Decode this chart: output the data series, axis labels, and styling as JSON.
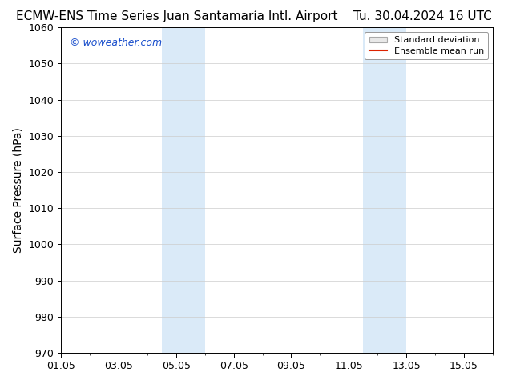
{
  "title_left": "ECMW-ENS Time Series Juan Santamaría Intl. Airport",
  "title_right": "Tu. 30.04.2024 16 UTC",
  "ylabel": "Surface Pressure (hPa)",
  "ylim": [
    970,
    1060
  ],
  "yticks": [
    970,
    980,
    990,
    1000,
    1010,
    1020,
    1030,
    1040,
    1050,
    1060
  ],
  "xtick_labels": [
    "01.05",
    "03.05",
    "05.05",
    "07.05",
    "09.05",
    "11.05",
    "13.05",
    "15.05"
  ],
  "xtick_positions": [
    0,
    2,
    4,
    6,
    8,
    10,
    12,
    14
  ],
  "xlim": [
    0,
    15
  ],
  "shaded_regions": [
    {
      "x_start": 3.5,
      "x_end": 5.0,
      "color": "#daeaf8"
    },
    {
      "x_start": 10.5,
      "x_end": 12.0,
      "color": "#daeaf8"
    }
  ],
  "watermark_text": "© woweather.com",
  "watermark_color": "#1a4fcc",
  "legend_std_dev_facecolor": "#e8e8e8",
  "legend_std_dev_edgecolor": "#aaaaaa",
  "legend_mean_run_color": "#dd2200",
  "background_color": "#ffffff",
  "grid_color": "#cccccc",
  "title_fontsize": 11,
  "axis_label_fontsize": 10,
  "tick_fontsize": 9,
  "watermark_fontsize": 9
}
